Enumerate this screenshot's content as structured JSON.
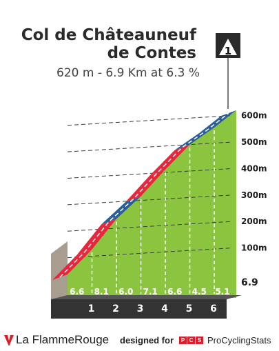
{
  "header": {
    "title_line1": "Col de Châteauneuf",
    "title_line2": "de Contes",
    "subtitle": "620 m - 6.9 Km at 6.3 %",
    "category": "1"
  },
  "chart_data": {
    "type": "area",
    "title": "Col de Châteauneuf de Contes",
    "subtitle": "620 m - 6.9 Km at 6.3 %",
    "xlabel": "",
    "ylabel": "",
    "x_unit": "km",
    "xlim": [
      0,
      6.9
    ],
    "ylim": [
      0,
      620
    ],
    "km_markers": [
      "1",
      "2",
      "3",
      "4",
      "5",
      "6"
    ],
    "end_label": "6.9",
    "y_ticks": [
      "100m",
      "200m",
      "300m",
      "400m",
      "500m",
      "600m"
    ],
    "segments": [
      {
        "label": "6.6",
        "gradient": 6.6,
        "color": "#e8263c"
      },
      {
        "label": "8.1",
        "gradient": 8.1,
        "color": "#e8263c"
      },
      {
        "label": "6.0",
        "gradient": 6.0,
        "color": "#2b5f97"
      },
      {
        "label": "7.1",
        "gradient": 7.1,
        "color": "#e8263c"
      },
      {
        "label": "6.6",
        "gradient": 6.6,
        "color": "#e8263c"
      },
      {
        "label": "4.5",
        "gradient": 4.5,
        "color": "#2b5f97"
      },
      {
        "label": "5.1",
        "gradient": 5.1,
        "color": "#2b5f97"
      }
    ],
    "segment_km": [
      1,
      1,
      1,
      1,
      1,
      1,
      0.9
    ],
    "grid": true,
    "colors": {
      "fill": "#8bc53f",
      "base": "#333333",
      "side": "#a89d8e",
      "band_red": "#e8263c",
      "band_blue": "#2b5f97"
    }
  },
  "footer": {
    "brand": "La FlammeRouge",
    "designed_for": "designed for",
    "pcs_letters": [
      "P",
      "C",
      "S"
    ],
    "pcs_name": "ProCyclingStats"
  }
}
